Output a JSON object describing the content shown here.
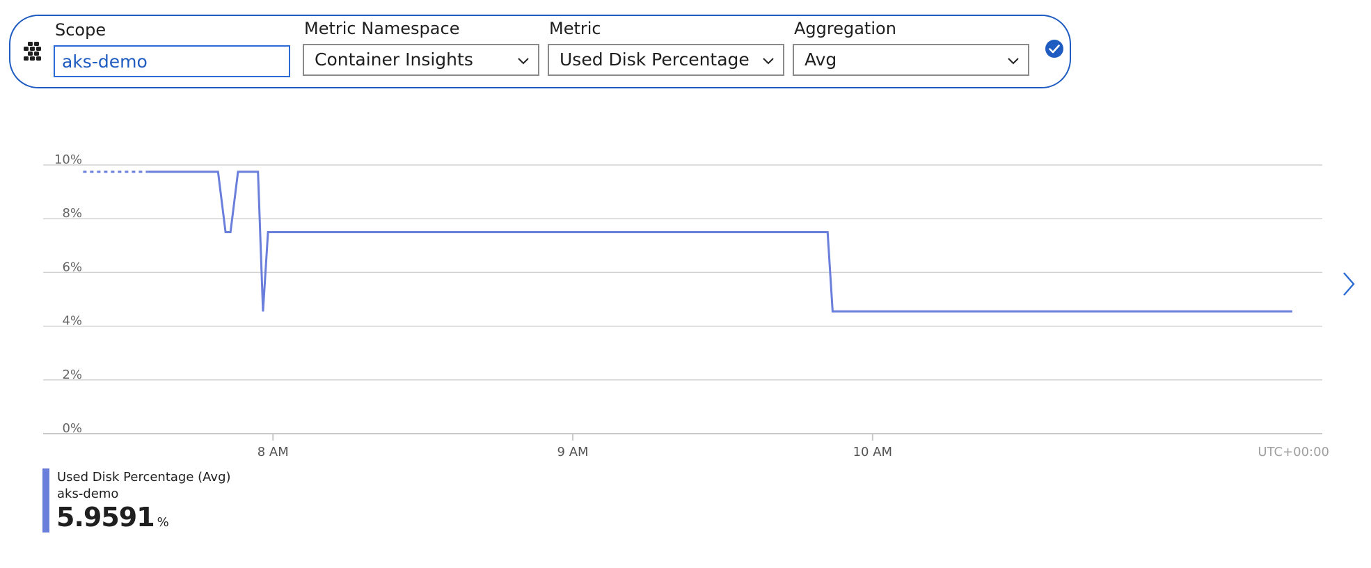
{
  "selector": {
    "scope": {
      "label": "Scope",
      "value": "aks-demo"
    },
    "metric_namespace": {
      "label": "Metric Namespace",
      "value": "Container Insights"
    },
    "metric": {
      "label": "Metric",
      "value": "Used Disk Percentage"
    },
    "aggregation": {
      "label": "Aggregation",
      "value": "Avg"
    },
    "resource_icon": "kubernetes-cluster-icon",
    "apply_icon": "checkmark-circle-icon",
    "accent_color": "#1f5cc2"
  },
  "chart_data": {
    "type": "line",
    "y_ticks": [
      "10%",
      "8%",
      "6%",
      "4%",
      "2%",
      "0%"
    ],
    "y_tick_values": [
      10,
      8,
      6,
      4,
      2,
      0
    ],
    "ylim": [
      0,
      10
    ],
    "x_ticks": [
      {
        "label": "8 AM",
        "minutes": 480
      },
      {
        "label": "9 AM",
        "minutes": 540
      },
      {
        "label": "10 AM",
        "minutes": 600
      }
    ],
    "xlim_minutes": [
      434,
      690
    ],
    "timezone_label": "UTC+00:00",
    "grid": true,
    "line_color": "#6a7fdc",
    "series": [
      {
        "name": "Used Disk Percentage (Avg)",
        "dotted_points": [
          [
            442,
            9.75
          ],
          [
            455,
            9.75
          ]
        ],
        "points": [
          [
            455,
            9.75
          ],
          [
            469,
            9.75
          ],
          [
            470.5,
            7.5
          ],
          [
            471.5,
            7.5
          ],
          [
            473,
            9.75
          ],
          [
            477,
            9.75
          ],
          [
            478,
            4.55
          ],
          [
            479,
            7.5
          ],
          [
            591,
            7.5
          ],
          [
            592,
            4.55
          ],
          [
            684,
            4.55
          ]
        ]
      }
    ]
  },
  "legend": {
    "title": "Used Disk Percentage (Avg)",
    "resource": "aks-demo",
    "value": "5.9591",
    "unit": "%"
  },
  "navigation": {
    "next_icon": "chevron-right-icon"
  }
}
